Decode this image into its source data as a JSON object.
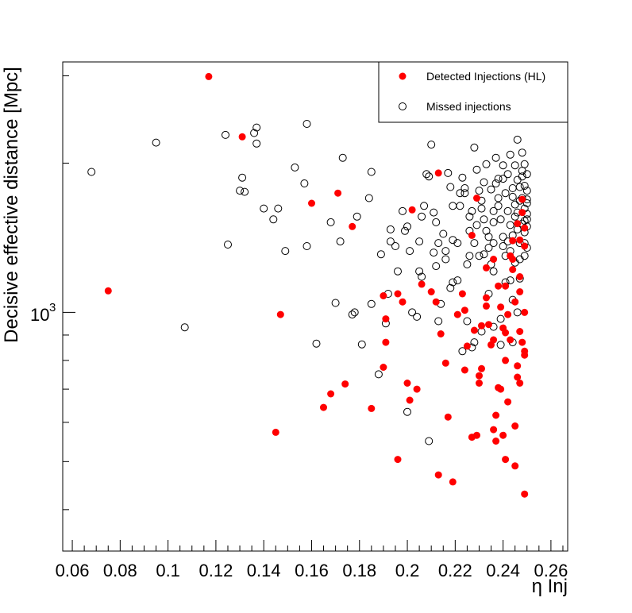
{
  "chart_data": {
    "type": "scatter",
    "title": "",
    "xlabel": "η Inj",
    "ylabel": "Decisive effective distance [Mpc]",
    "xlim": [
      0.056,
      0.267
    ],
    "ylim": [
      330,
      3200
    ],
    "yscale": "log",
    "x_ticks": [
      0.06,
      0.08,
      0.1,
      0.12,
      0.14,
      0.16,
      0.18,
      0.2,
      0.22,
      0.24,
      0.26
    ],
    "x_tick_labels": [
      "0.06",
      "0.08",
      "0.1",
      "0.12",
      "0.14",
      "0.16",
      "0.18",
      "0.2",
      "0.22",
      "0.24",
      "0.26"
    ],
    "y_major_label_base": "10",
    "y_major_label_exp": "3",
    "y_major_value": 1000,
    "legend_position": "top-right",
    "series": [
      {
        "name": "Detected Injections (HL)",
        "marker": "filled-circle",
        "color": "#ff0000",
        "points": [
          [
            0.117,
            2990
          ],
          [
            0.131,
            2260
          ],
          [
            0.075,
            1105
          ],
          [
            0.147,
            990
          ],
          [
            0.16,
            1660
          ],
          [
            0.171,
            1740
          ],
          [
            0.177,
            1490
          ],
          [
            0.145,
            573
          ],
          [
            0.165,
            643
          ],
          [
            0.174,
            717
          ],
          [
            0.185,
            640
          ],
          [
            0.168,
            685
          ],
          [
            0.19,
            1080
          ],
          [
            0.191,
            970
          ],
          [
            0.191,
            870
          ],
          [
            0.19,
            775
          ],
          [
            0.196,
            1090
          ],
          [
            0.198,
            1050
          ],
          [
            0.201,
            665
          ],
          [
            0.2,
            720
          ],
          [
            0.204,
            700
          ],
          [
            0.206,
            1140
          ],
          [
            0.202,
            1610
          ],
          [
            0.196,
            505
          ],
          [
            0.213,
            1910
          ],
          [
            0.21,
            1100
          ],
          [
            0.212,
            1050
          ],
          [
            0.214,
            905
          ],
          [
            0.216,
            790
          ],
          [
            0.217,
            615
          ],
          [
            0.219,
            455
          ],
          [
            0.213,
            470
          ],
          [
            0.221,
            990
          ],
          [
            0.223,
            1090
          ],
          [
            0.224,
            1010
          ],
          [
            0.225,
            855
          ],
          [
            0.227,
            560
          ],
          [
            0.229,
            565
          ],
          [
            0.224,
            765
          ],
          [
            0.228,
            920
          ],
          [
            0.231,
            940
          ],
          [
            0.23,
            720
          ],
          [
            0.231,
            770
          ],
          [
            0.23,
            745
          ],
          [
            0.233,
            1070
          ],
          [
            0.233,
            1030
          ],
          [
            0.235,
            860
          ],
          [
            0.237,
            550
          ],
          [
            0.237,
            620
          ],
          [
            0.236,
            580
          ],
          [
            0.238,
            705
          ],
          [
            0.239,
            700
          ],
          [
            0.24,
            565
          ],
          [
            0.241,
            505
          ],
          [
            0.242,
            660
          ],
          [
            0.241,
            800
          ],
          [
            0.24,
            930
          ],
          [
            0.242,
            990
          ],
          [
            0.245,
            1050
          ],
          [
            0.245,
            590
          ],
          [
            0.245,
            490
          ],
          [
            0.246,
            740
          ],
          [
            0.247,
            720
          ],
          [
            0.246,
            780
          ],
          [
            0.247,
            915
          ],
          [
            0.248,
            870
          ],
          [
            0.249,
            820
          ],
          [
            0.249,
            835
          ],
          [
            0.249,
            1000
          ],
          [
            0.249,
            430
          ],
          [
            0.239,
            1025
          ],
          [
            0.241,
            1130
          ],
          [
            0.236,
            1280
          ],
          [
            0.243,
            1300
          ],
          [
            0.244,
            1395
          ],
          [
            0.246,
            1510
          ],
          [
            0.248,
            1590
          ],
          [
            0.249,
            1480
          ],
          [
            0.247,
            1400
          ],
          [
            0.249,
            1360
          ],
          [
            0.244,
            1220
          ],
          [
            0.227,
            1430
          ],
          [
            0.233,
            1230
          ],
          [
            0.238,
            1130
          ],
          [
            0.241,
            910
          ],
          [
            0.234,
            945
          ],
          [
            0.243,
            880
          ],
          [
            0.236,
            880
          ],
          [
            0.229,
            1700
          ],
          [
            0.248,
            1690
          ],
          [
            0.247,
            1100
          ],
          [
            0.247,
            1180
          ],
          [
            0.244,
            1280
          ]
        ]
      },
      {
        "name": "Missed injections",
        "marker": "open-circle",
        "color": "#000000",
        "points": [
          [
            0.068,
            1920
          ],
          [
            0.095,
            2200
          ],
          [
            0.124,
            2280
          ],
          [
            0.125,
            1370
          ],
          [
            0.107,
            933
          ],
          [
            0.13,
            1760
          ],
          [
            0.131,
            1870
          ],
          [
            0.132,
            1750
          ],
          [
            0.136,
            2300
          ],
          [
            0.137,
            2360
          ],
          [
            0.137,
            2190
          ],
          [
            0.14,
            1620
          ],
          [
            0.144,
            1540
          ],
          [
            0.146,
            1620
          ],
          [
            0.149,
            1330
          ],
          [
            0.153,
            1960
          ],
          [
            0.157,
            1820
          ],
          [
            0.158,
            2400
          ],
          [
            0.158,
            1360
          ],
          [
            0.162,
            865
          ],
          [
            0.168,
            1520
          ],
          [
            0.17,
            1045
          ],
          [
            0.172,
            1390
          ],
          [
            0.173,
            2050
          ],
          [
            0.177,
            990
          ],
          [
            0.178,
            1000
          ],
          [
            0.179,
            1560
          ],
          [
            0.181,
            862
          ],
          [
            0.184,
            1700
          ],
          [
            0.185,
            1920
          ],
          [
            0.185,
            1040
          ],
          [
            0.188,
            750
          ],
          [
            0.189,
            1310
          ],
          [
            0.191,
            950
          ],
          [
            0.192,
            1090
          ],
          [
            0.193,
            1470
          ],
          [
            0.193,
            1390
          ],
          [
            0.195,
            1360
          ],
          [
            0.196,
            1210
          ],
          [
            0.198,
            1600
          ],
          [
            0.199,
            1460
          ],
          [
            0.2,
            1490
          ],
          [
            0.201,
            1330
          ],
          [
            0.202,
            1000
          ],
          [
            0.204,
            980
          ],
          [
            0.205,
            1210
          ],
          [
            0.206,
            1560
          ],
          [
            0.206,
            1180
          ],
          [
            0.207,
            1640
          ],
          [
            0.208,
            1900
          ],
          [
            0.209,
            1880
          ],
          [
            0.21,
            2180
          ],
          [
            0.211,
            1320
          ],
          [
            0.212,
            1520
          ],
          [
            0.213,
            1380
          ],
          [
            0.214,
            1040
          ],
          [
            0.215,
            1440
          ],
          [
            0.216,
            1330
          ],
          [
            0.217,
            1910
          ],
          [
            0.218,
            1790
          ],
          [
            0.219,
            1150
          ],
          [
            0.219,
            1400
          ],
          [
            0.221,
            1160
          ],
          [
            0.222,
            1640
          ],
          [
            0.223,
            1870
          ],
          [
            0.224,
            1740
          ],
          [
            0.225,
            960
          ],
          [
            0.226,
            1300
          ],
          [
            0.227,
            1600
          ],
          [
            0.228,
            2150
          ],
          [
            0.229,
            1940
          ],
          [
            0.23,
            1760
          ],
          [
            0.231,
            1680
          ],
          [
            0.232,
            1540
          ],
          [
            0.233,
            1460
          ],
          [
            0.234,
            1350
          ],
          [
            0.235,
            1250
          ],
          [
            0.236,
            1600
          ],
          [
            0.237,
            1820
          ],
          [
            0.238,
            1700
          ],
          [
            0.239,
            1540
          ],
          [
            0.24,
            1420
          ],
          [
            0.241,
            1300
          ],
          [
            0.242,
            1900
          ],
          [
            0.243,
            2080
          ],
          [
            0.244,
            1780
          ],
          [
            0.245,
            1650
          ],
          [
            0.245,
            1560
          ],
          [
            0.246,
            1470
          ],
          [
            0.247,
            1380
          ],
          [
            0.247,
            1280
          ],
          [
            0.248,
            1700
          ],
          [
            0.248,
            1880
          ],
          [
            0.249,
            1620
          ],
          [
            0.249,
            1530
          ],
          [
            0.249,
            1450
          ],
          [
            0.249,
            1380
          ],
          [
            0.25,
            1760
          ],
          [
            0.25,
            1660
          ],
          [
            0.25,
            1580
          ],
          [
            0.25,
            1490
          ],
          [
            0.241,
            1150
          ],
          [
            0.243,
            1160
          ],
          [
            0.244,
            1060
          ],
          [
            0.239,
            970
          ],
          [
            0.236,
            935
          ],
          [
            0.231,
            915
          ],
          [
            0.228,
            870
          ],
          [
            0.227,
            850
          ],
          [
            0.223,
            835
          ],
          [
            0.239,
            860
          ],
          [
            0.246,
            1000
          ],
          [
            0.244,
            870
          ],
          [
            0.247,
            1170
          ],
          [
            0.225,
            1250
          ],
          [
            0.23,
            1300
          ],
          [
            0.234,
            1090
          ],
          [
            0.236,
            1210
          ],
          [
            0.218,
            1120
          ],
          [
            0.213,
            960
          ],
          [
            0.2,
            630
          ],
          [
            0.209,
            550
          ],
          [
            0.222,
            1740
          ],
          [
            0.233,
            1990
          ],
          [
            0.237,
            2050
          ],
          [
            0.24,
            1980
          ],
          [
            0.241,
            1740
          ],
          [
            0.242,
            1600
          ],
          [
            0.243,
            1500
          ],
          [
            0.244,
            1430
          ],
          [
            0.246,
            1590
          ],
          [
            0.247,
            1680
          ],
          [
            0.248,
            1930
          ],
          [
            0.249,
            1800
          ],
          [
            0.25,
            1900
          ],
          [
            0.248,
            2100
          ],
          [
            0.246,
            2230
          ],
          [
            0.238,
            1860
          ],
          [
            0.235,
            1770
          ],
          [
            0.229,
            1500
          ],
          [
            0.226,
            1460
          ],
          [
            0.232,
            1830
          ],
          [
            0.24,
            1860
          ],
          [
            0.245,
            1980
          ],
          [
            0.247,
            1790
          ],
          [
            0.25,
            1540
          ],
          [
            0.25,
            1350
          ],
          [
            0.249,
            1300
          ],
          [
            0.243,
            1330
          ],
          [
            0.24,
            1360
          ],
          [
            0.234,
            1420
          ],
          [
            0.231,
            1620
          ],
          [
            0.226,
            1560
          ],
          [
            0.221,
            1380
          ],
          [
            0.216,
            1280
          ],
          [
            0.212,
            1240
          ],
          [
            0.205,
            1390
          ],
          [
            0.211,
            1590
          ],
          [
            0.219,
            1640
          ],
          [
            0.224,
            1780
          ],
          [
            0.236,
            1520
          ],
          [
            0.238,
            1640
          ],
          [
            0.244,
            1710
          ],
          [
            0.246,
            1850
          ],
          [
            0.249,
            1990
          ],
          [
            0.25,
            1690
          ],
          [
            0.248,
            1510
          ],
          [
            0.242,
            1390
          ],
          [
            0.245,
            1260
          ],
          [
            0.232,
            1310
          ],
          [
            0.228,
            1380
          ],
          [
            0.236,
            1380
          ]
        ]
      }
    ]
  }
}
